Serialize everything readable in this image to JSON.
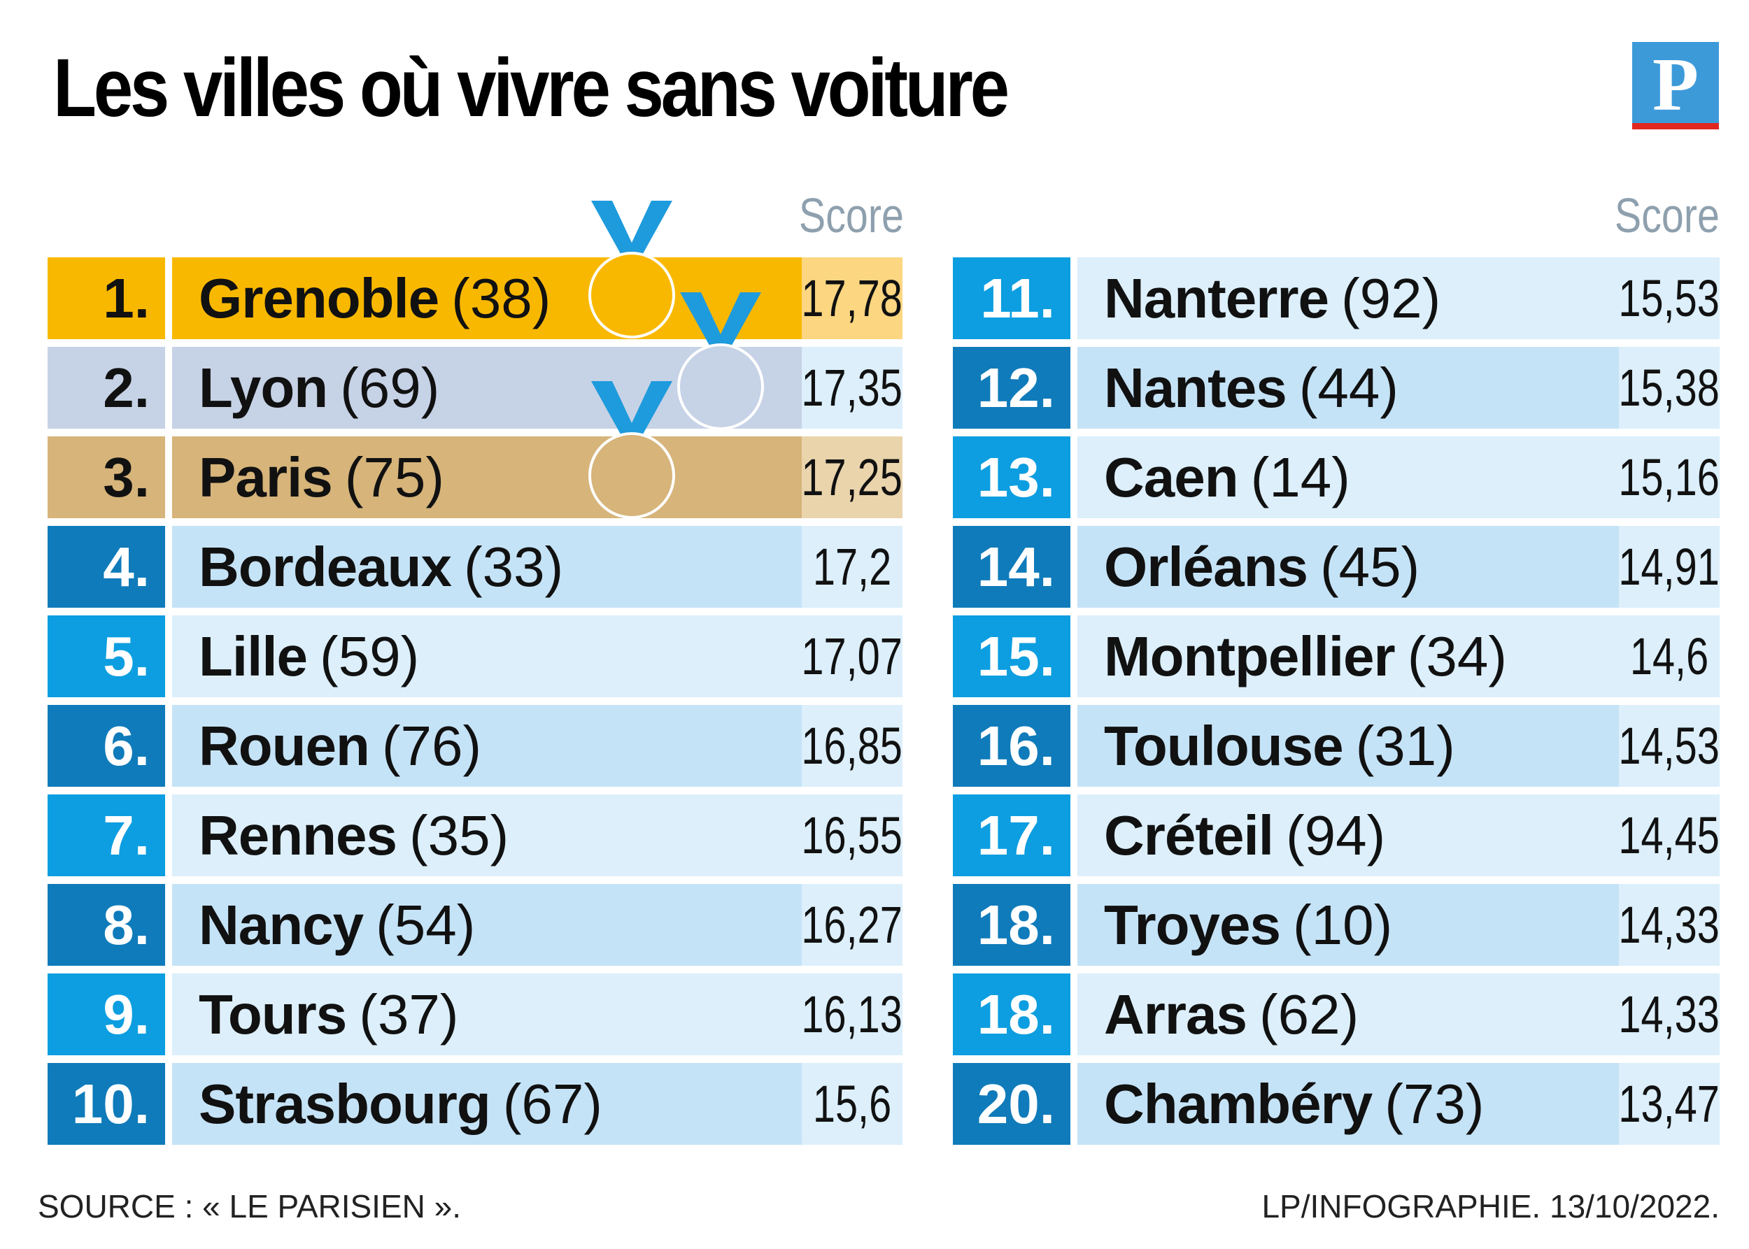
{
  "title": "Les villes où vivre sans voiture",
  "logo_letter": "P",
  "score_label": "Score",
  "footer": {
    "source": "SOURCE : « LE PARISIEN ».",
    "credit": "LP/INFOGRAPHIE.  13/10/2022."
  },
  "colors": {
    "gold": "#f9b800",
    "gold_light": "#fcd680",
    "silver": "#c6d2e6",
    "bronze": "#d6b47a",
    "bronze_light": "#e9d4ac",
    "rank_blue_dark": "#0f7bba",
    "rank_blue": "#0c9ee0",
    "row_blue_dark": "#c5e3f7",
    "row_blue": "#dceffb",
    "medal_ribbon": "#1e9bdc"
  },
  "chart_data": {
    "type": "table",
    "columns": [
      "rank",
      "city",
      "department",
      "score"
    ],
    "left": [
      {
        "rank": "1.",
        "city": "Grenoble",
        "dept": "(38)",
        "score": "17,78"
      },
      {
        "rank": "2.",
        "city": "Lyon",
        "dept": "(69)",
        "score": "17,35"
      },
      {
        "rank": "3.",
        "city": "Paris",
        "dept": "(75)",
        "score": "17,25"
      },
      {
        "rank": "4.",
        "city": "Bordeaux",
        "dept": "(33)",
        "score": "17,2"
      },
      {
        "rank": "5.",
        "city": "Lille",
        "dept": "(59)",
        "score": "17,07"
      },
      {
        "rank": "6.",
        "city": "Rouen",
        "dept": "(76)",
        "score": "16,85"
      },
      {
        "rank": "7.",
        "city": "Rennes",
        "dept": "(35)",
        "score": "16,55"
      },
      {
        "rank": "8.",
        "city": "Nancy",
        "dept": "(54)",
        "score": "16,27"
      },
      {
        "rank": "9.",
        "city": "Tours",
        "dept": "(37)",
        "score": "16,13"
      },
      {
        "rank": "10.",
        "city": "Strasbourg",
        "dept": "(67)",
        "score": "15,6"
      }
    ],
    "right": [
      {
        "rank": "11.",
        "city": "Nanterre",
        "dept": "(92)",
        "score": "15,53"
      },
      {
        "rank": "12.",
        "city": "Nantes",
        "dept": "(44)",
        "score": "15,38"
      },
      {
        "rank": "13.",
        "city": "Caen",
        "dept": "(14)",
        "score": "15,16"
      },
      {
        "rank": "14.",
        "city": "Orléans",
        "dept": "(45)",
        "score": "14,91"
      },
      {
        "rank": "15.",
        "city": "Montpellier",
        "dept": "(34)",
        "score": "14,6"
      },
      {
        "rank": "16.",
        "city": "Toulouse",
        "dept": "(31)",
        "score": "14,53"
      },
      {
        "rank": "17.",
        "city": "Créteil",
        "dept": "(94)",
        "score": "14,45"
      },
      {
        "rank": "18.",
        "city": "Troyes",
        "dept": "(10)",
        "score": "14,33"
      },
      {
        "rank": "18.",
        "city": "Arras",
        "dept": "(62)",
        "score": "14,33"
      },
      {
        "rank": "20.",
        "city": "Chambéry",
        "dept": "(73)",
        "score": "13,47"
      }
    ]
  }
}
